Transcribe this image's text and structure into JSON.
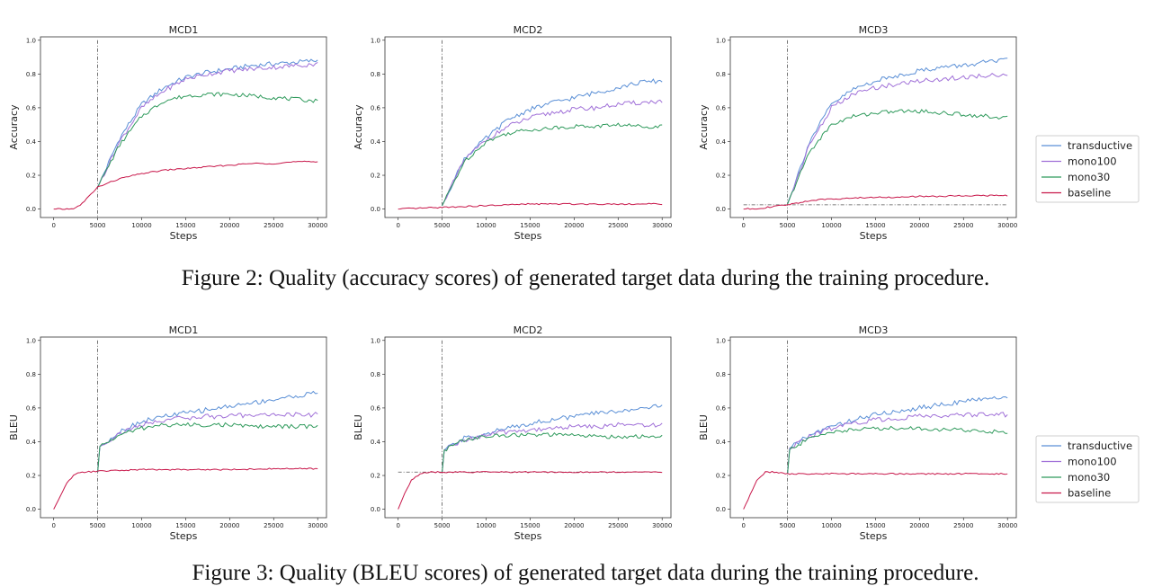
{
  "captions": {
    "fig2": "Figure 2: Quality (accuracy scores) of generated target data during the training procedure.",
    "fig3": "Figure 3: Quality (BLEU scores) of generated target data during the training procedure."
  },
  "colors": {
    "transductive": "#5a8fd6",
    "mono100": "#a070d8",
    "mono30": "#2f9a5c",
    "baseline": "#c8174a",
    "ref": "#555555"
  },
  "legends": [
    [
      "transductive",
      "mono100",
      "mono30",
      "baseline"
    ],
    [
      "transductive",
      "mono100",
      "mono30",
      "baseline"
    ]
  ],
  "chart_data": [
    {
      "type": "line",
      "title": "MCD1",
      "xlabel": "Steps",
      "ylabel": "Accuracy",
      "xlim": [
        -1500,
        31000
      ],
      "ylim": [
        -0.05,
        1.02
      ],
      "xticks": [
        0,
        5000,
        10000,
        15000,
        20000,
        25000,
        30000
      ],
      "yticks": [
        0.0,
        0.2,
        0.4,
        0.6,
        0.8,
        1.0
      ],
      "vline_x": 5000,
      "hline_y": null,
      "series": [
        {
          "name": "transductive",
          "x": [
            5000,
            7500,
            10000,
            12500,
            15000,
            17500,
            20000,
            22500,
            25000,
            27500,
            30000
          ],
          "y": [
            0.13,
            0.42,
            0.62,
            0.72,
            0.78,
            0.81,
            0.83,
            0.85,
            0.86,
            0.87,
            0.88
          ]
        },
        {
          "name": "mono100",
          "x": [
            5000,
            7500,
            10000,
            12500,
            15000,
            17500,
            20000,
            22500,
            25000,
            27500,
            30000
          ],
          "y": [
            0.13,
            0.4,
            0.6,
            0.7,
            0.77,
            0.8,
            0.82,
            0.83,
            0.84,
            0.85,
            0.86
          ]
        },
        {
          "name": "mono30",
          "x": [
            5000,
            7500,
            10000,
            12500,
            15000,
            17500,
            20000,
            22500,
            25000,
            27500,
            30000
          ],
          "y": [
            0.13,
            0.38,
            0.55,
            0.64,
            0.67,
            0.68,
            0.68,
            0.67,
            0.66,
            0.65,
            0.64
          ]
        },
        {
          "name": "baseline",
          "x": [
            0,
            2000,
            3000,
            5000,
            7500,
            10000,
            12500,
            15000,
            17500,
            20000,
            22500,
            25000,
            27500,
            30000
          ],
          "y": [
            0.0,
            0.0,
            0.02,
            0.13,
            0.18,
            0.21,
            0.23,
            0.24,
            0.25,
            0.26,
            0.27,
            0.27,
            0.28,
            0.28
          ]
        }
      ]
    },
    {
      "type": "line",
      "title": "MCD2",
      "xlabel": "Steps",
      "ylabel": "Accuracy",
      "xlim": [
        -1500,
        31000
      ],
      "ylim": [
        -0.05,
        1.02
      ],
      "xticks": [
        0,
        5000,
        10000,
        15000,
        20000,
        25000,
        30000
      ],
      "yticks": [
        0.0,
        0.2,
        0.4,
        0.6,
        0.8,
        1.0
      ],
      "vline_x": 5000,
      "hline_y": null,
      "series": [
        {
          "name": "transductive",
          "x": [
            5000,
            7500,
            10000,
            12500,
            15000,
            17500,
            20000,
            22500,
            25000,
            27500,
            30000
          ],
          "y": [
            0.02,
            0.3,
            0.42,
            0.53,
            0.59,
            0.63,
            0.66,
            0.69,
            0.72,
            0.75,
            0.76
          ]
        },
        {
          "name": "mono100",
          "x": [
            5000,
            7500,
            10000,
            12500,
            15000,
            17500,
            20000,
            22500,
            25000,
            27500,
            30000
          ],
          "y": [
            0.02,
            0.29,
            0.41,
            0.49,
            0.54,
            0.57,
            0.59,
            0.6,
            0.62,
            0.63,
            0.64
          ]
        },
        {
          "name": "mono30",
          "x": [
            5000,
            7500,
            10000,
            12500,
            15000,
            17500,
            20000,
            22500,
            25000,
            27500,
            30000
          ],
          "y": [
            0.02,
            0.28,
            0.4,
            0.45,
            0.47,
            0.48,
            0.49,
            0.49,
            0.5,
            0.49,
            0.49
          ]
        },
        {
          "name": "baseline",
          "x": [
            0,
            5000,
            10000,
            15000,
            20000,
            25000,
            30000
          ],
          "y": [
            0.0,
            0.01,
            0.02,
            0.03,
            0.03,
            0.03,
            0.03
          ]
        }
      ]
    },
    {
      "type": "line",
      "title": "MCD3",
      "xlabel": "Steps",
      "ylabel": "Accuracy",
      "xlim": [
        -1500,
        31000
      ],
      "ylim": [
        -0.05,
        1.02
      ],
      "xticks": [
        0,
        5000,
        10000,
        15000,
        20000,
        25000,
        30000
      ],
      "yticks": [
        0.0,
        0.2,
        0.4,
        0.6,
        0.8,
        1.0
      ],
      "vline_x": 5000,
      "hline_y": 0.025,
      "series": [
        {
          "name": "transductive",
          "x": [
            5000,
            7500,
            10000,
            12500,
            15000,
            17500,
            20000,
            22500,
            25000,
            27500,
            30000
          ],
          "y": [
            0.03,
            0.4,
            0.62,
            0.71,
            0.76,
            0.79,
            0.82,
            0.84,
            0.85,
            0.87,
            0.88
          ]
        },
        {
          "name": "mono100",
          "x": [
            5000,
            7500,
            10000,
            12500,
            15000,
            17500,
            20000,
            22500,
            25000,
            27500,
            30000
          ],
          "y": [
            0.03,
            0.38,
            0.6,
            0.68,
            0.72,
            0.74,
            0.76,
            0.77,
            0.78,
            0.79,
            0.8
          ]
        },
        {
          "name": "mono30",
          "x": [
            5000,
            7500,
            10000,
            12500,
            15000,
            17500,
            20000,
            22500,
            25000,
            27500,
            30000
          ],
          "y": [
            0.03,
            0.34,
            0.5,
            0.55,
            0.57,
            0.58,
            0.58,
            0.57,
            0.56,
            0.55,
            0.54
          ]
        },
        {
          "name": "baseline",
          "x": [
            0,
            2000,
            5000,
            7500,
            10000,
            12500,
            15000,
            17500,
            20000,
            22500,
            25000,
            27500,
            30000
          ],
          "y": [
            0.0,
            0.005,
            0.025,
            0.05,
            0.06,
            0.065,
            0.07,
            0.07,
            0.075,
            0.075,
            0.08,
            0.08,
            0.08
          ]
        }
      ]
    },
    {
      "type": "line",
      "title": "MCD1",
      "xlabel": "Steps",
      "ylabel": "BLEU",
      "xlim": [
        -1500,
        31000
      ],
      "ylim": [
        -0.05,
        1.02
      ],
      "xticks": [
        0,
        5000,
        10000,
        15000,
        20000,
        25000,
        30000
      ],
      "yticks": [
        0.0,
        0.2,
        0.4,
        0.6,
        0.8,
        1.0
      ],
      "vline_x": 5000,
      "hline_y": null,
      "series": [
        {
          "name": "transductive",
          "x": [
            5000,
            5200,
            7500,
            10000,
            12500,
            15000,
            17500,
            20000,
            22500,
            25000,
            27500,
            30000
          ],
          "y": [
            0.22,
            0.37,
            0.46,
            0.52,
            0.55,
            0.57,
            0.59,
            0.61,
            0.63,
            0.65,
            0.67,
            0.69
          ]
        },
        {
          "name": "mono100",
          "x": [
            5000,
            5200,
            7500,
            10000,
            12500,
            15000,
            17500,
            20000,
            22500,
            25000,
            27500,
            30000
          ],
          "y": [
            0.22,
            0.37,
            0.45,
            0.5,
            0.53,
            0.54,
            0.55,
            0.55,
            0.56,
            0.56,
            0.56,
            0.56
          ]
        },
        {
          "name": "mono30",
          "x": [
            5000,
            5200,
            7500,
            10000,
            12500,
            15000,
            17500,
            20000,
            22500,
            25000,
            27500,
            30000
          ],
          "y": [
            0.22,
            0.37,
            0.44,
            0.48,
            0.5,
            0.5,
            0.5,
            0.5,
            0.49,
            0.49,
            0.49,
            0.49
          ]
        },
        {
          "name": "baseline",
          "x": [
            0,
            800,
            1500,
            2500,
            3500,
            5000,
            7500,
            10000,
            15000,
            20000,
            25000,
            30000
          ],
          "y": [
            0.0,
            0.08,
            0.16,
            0.21,
            0.22,
            0.225,
            0.23,
            0.235,
            0.235,
            0.235,
            0.24,
            0.24
          ]
        }
      ]
    },
    {
      "type": "line",
      "title": "MCD2",
      "xlabel": "Steps",
      "ylabel": "BLEU",
      "xlim": [
        -1500,
        31000
      ],
      "ylim": [
        -0.05,
        1.02
      ],
      "xticks": [
        0,
        5000,
        10000,
        15000,
        20000,
        25000,
        30000
      ],
      "yticks": [
        0.0,
        0.2,
        0.4,
        0.6,
        0.8,
        1.0
      ],
      "vline_x": 5000,
      "hline_y": 0.22,
      "series": [
        {
          "name": "transductive",
          "x": [
            5000,
            5200,
            7500,
            10000,
            12500,
            15000,
            17500,
            20000,
            22500,
            25000,
            27500,
            30000
          ],
          "y": [
            0.22,
            0.35,
            0.42,
            0.45,
            0.48,
            0.51,
            0.53,
            0.55,
            0.57,
            0.58,
            0.6,
            0.61
          ]
        },
        {
          "name": "mono100",
          "x": [
            5000,
            5200,
            7500,
            10000,
            12500,
            15000,
            17500,
            20000,
            22500,
            25000,
            27500,
            30000
          ],
          "y": [
            0.22,
            0.35,
            0.41,
            0.44,
            0.46,
            0.47,
            0.48,
            0.49,
            0.49,
            0.5,
            0.5,
            0.5
          ]
        },
        {
          "name": "mono30",
          "x": [
            5000,
            5200,
            7500,
            10000,
            12500,
            15000,
            17500,
            20000,
            22500,
            25000,
            27500,
            30000
          ],
          "y": [
            0.22,
            0.35,
            0.41,
            0.43,
            0.44,
            0.44,
            0.44,
            0.44,
            0.43,
            0.43,
            0.43,
            0.43
          ]
        },
        {
          "name": "baseline",
          "x": [
            0,
            800,
            1500,
            2500,
            3500,
            5000,
            10000,
            15000,
            20000,
            25000,
            30000
          ],
          "y": [
            0.0,
            0.1,
            0.17,
            0.21,
            0.22,
            0.22,
            0.22,
            0.22,
            0.22,
            0.22,
            0.22
          ]
        }
      ]
    },
    {
      "type": "line",
      "title": "MCD3",
      "xlabel": "Steps",
      "ylabel": "BLEU",
      "xlim": [
        -1500,
        31000
      ],
      "ylim": [
        -0.05,
        1.02
      ],
      "xticks": [
        0,
        5000,
        10000,
        15000,
        20000,
        25000,
        30000
      ],
      "yticks": [
        0.0,
        0.2,
        0.4,
        0.6,
        0.8,
        1.0
      ],
      "vline_x": 5000,
      "hline_y": null,
      "series": [
        {
          "name": "transductive",
          "x": [
            5000,
            5200,
            7500,
            10000,
            12500,
            15000,
            17500,
            20000,
            22500,
            25000,
            27500,
            30000
          ],
          "y": [
            0.21,
            0.36,
            0.44,
            0.49,
            0.53,
            0.56,
            0.58,
            0.6,
            0.62,
            0.64,
            0.65,
            0.67
          ]
        },
        {
          "name": "mono100",
          "x": [
            5000,
            5200,
            7500,
            10000,
            12500,
            15000,
            17500,
            20000,
            22500,
            25000,
            27500,
            30000
          ],
          "y": [
            0.21,
            0.36,
            0.43,
            0.48,
            0.51,
            0.53,
            0.54,
            0.55,
            0.55,
            0.56,
            0.56,
            0.56
          ]
        },
        {
          "name": "mono30",
          "x": [
            5000,
            5200,
            7500,
            10000,
            12500,
            15000,
            17500,
            20000,
            22500,
            25000,
            27500,
            30000
          ],
          "y": [
            0.21,
            0.35,
            0.42,
            0.46,
            0.47,
            0.48,
            0.48,
            0.48,
            0.47,
            0.47,
            0.46,
            0.46
          ]
        },
        {
          "name": "baseline",
          "x": [
            0,
            800,
            1500,
            2500,
            3500,
            5000,
            10000,
            15000,
            20000,
            25000,
            30000
          ],
          "y": [
            0.0,
            0.09,
            0.17,
            0.22,
            0.22,
            0.21,
            0.21,
            0.21,
            0.21,
            0.21,
            0.21
          ]
        }
      ]
    }
  ]
}
